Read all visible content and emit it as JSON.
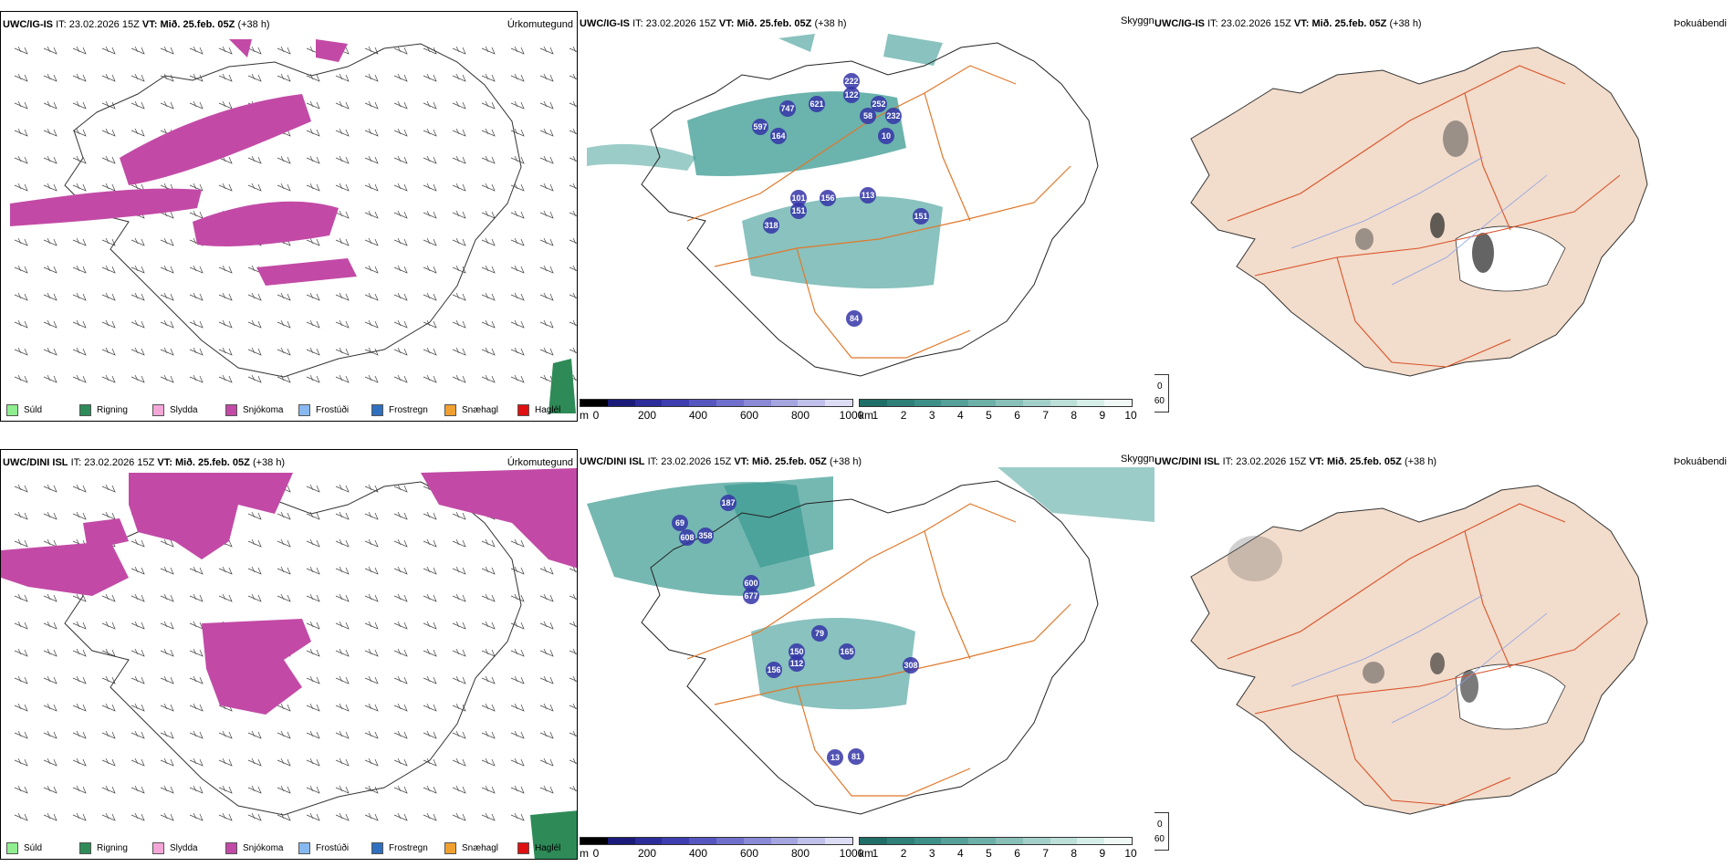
{
  "rows": [
    {
      "model": "UWC/IG-IS",
      "it_label": "IT:",
      "it_value": "23.02.2026 15Z",
      "vt_label": "VT:",
      "vt_value": "Mið. 25.feb. 05Z",
      "lead": "(+38 h)",
      "panels": {
        "precip_title": "Úrkomutegund",
        "cloud_title": "Skyggni",
        "fog_title": "Þokuábendi"
      },
      "cloud_values": [
        "222",
        "747",
        "621",
        "122",
        "252",
        "597",
        "58",
        "232",
        "164",
        "10",
        "113",
        "101",
        "156",
        "151",
        "151",
        "318",
        "84"
      ]
    },
    {
      "model": "UWC/DINI ISL",
      "it_label": "IT:",
      "it_value": "23.02.2026 15Z",
      "vt_label": "VT:",
      "vt_value": "Mið. 25.feb. 05Z",
      "lead": "(+38 h)",
      "panels": {
        "precip_title": "Úrkomutegund",
        "cloud_title": "Skyggni",
        "fog_title": "Þokuábendi"
      },
      "cloud_values": [
        "187",
        "69",
        "358",
        "608",
        "600",
        "677",
        "79",
        "150",
        "165",
        "112",
        "156",
        "308",
        "81",
        "13"
      ]
    }
  ],
  "precip_legend": [
    {
      "label": "Súld",
      "color": "#90ee90"
    },
    {
      "label": "Rigning",
      "color": "#2e8b57"
    },
    {
      "label": "Slydda",
      "color": "#f4a6d7"
    },
    {
      "label": "Snjókoma",
      "color": "#c24aa6"
    },
    {
      "label": "Frostúði",
      "color": "#87b9f0"
    },
    {
      "label": "Frostregn",
      "color": "#2f6fc0"
    },
    {
      "label": "Snæhagl",
      "color": "#f0a030"
    },
    {
      "label": "Haglél",
      "color": "#e01010"
    }
  ],
  "height_bar": {
    "unit": "m",
    "ticks": [
      "0",
      "200",
      "400",
      "600",
      "800",
      "1000"
    ]
  },
  "vis_bar": {
    "unit": "km",
    "ticks": [
      "1",
      "2",
      "3",
      "4",
      "5",
      "6",
      "7",
      "8",
      "9",
      "10"
    ]
  },
  "fog_legend": [
    "0",
    "60"
  ],
  "colors": {
    "snow": "#c24aa6",
    "cloud": "#3a9a92",
    "road": "#e0782a",
    "land": "#f2dccb",
    "river": "#8aa0e8"
  }
}
